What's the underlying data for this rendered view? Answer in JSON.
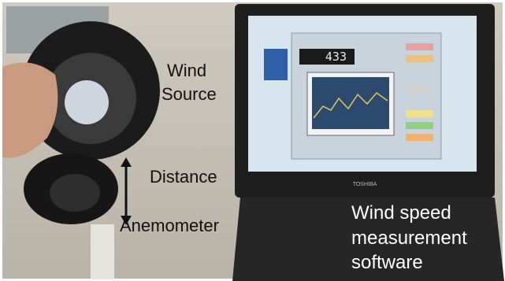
{
  "labels": {
    "wind_source": [
      "Wind",
      "Source"
    ],
    "distance": "Distance",
    "anemometer": "Anemometer",
    "software": [
      "Wind speed",
      "measurement",
      "software"
    ]
  },
  "screen": {
    "display": "433",
    "brand": "TOSHIBA"
  }
}
